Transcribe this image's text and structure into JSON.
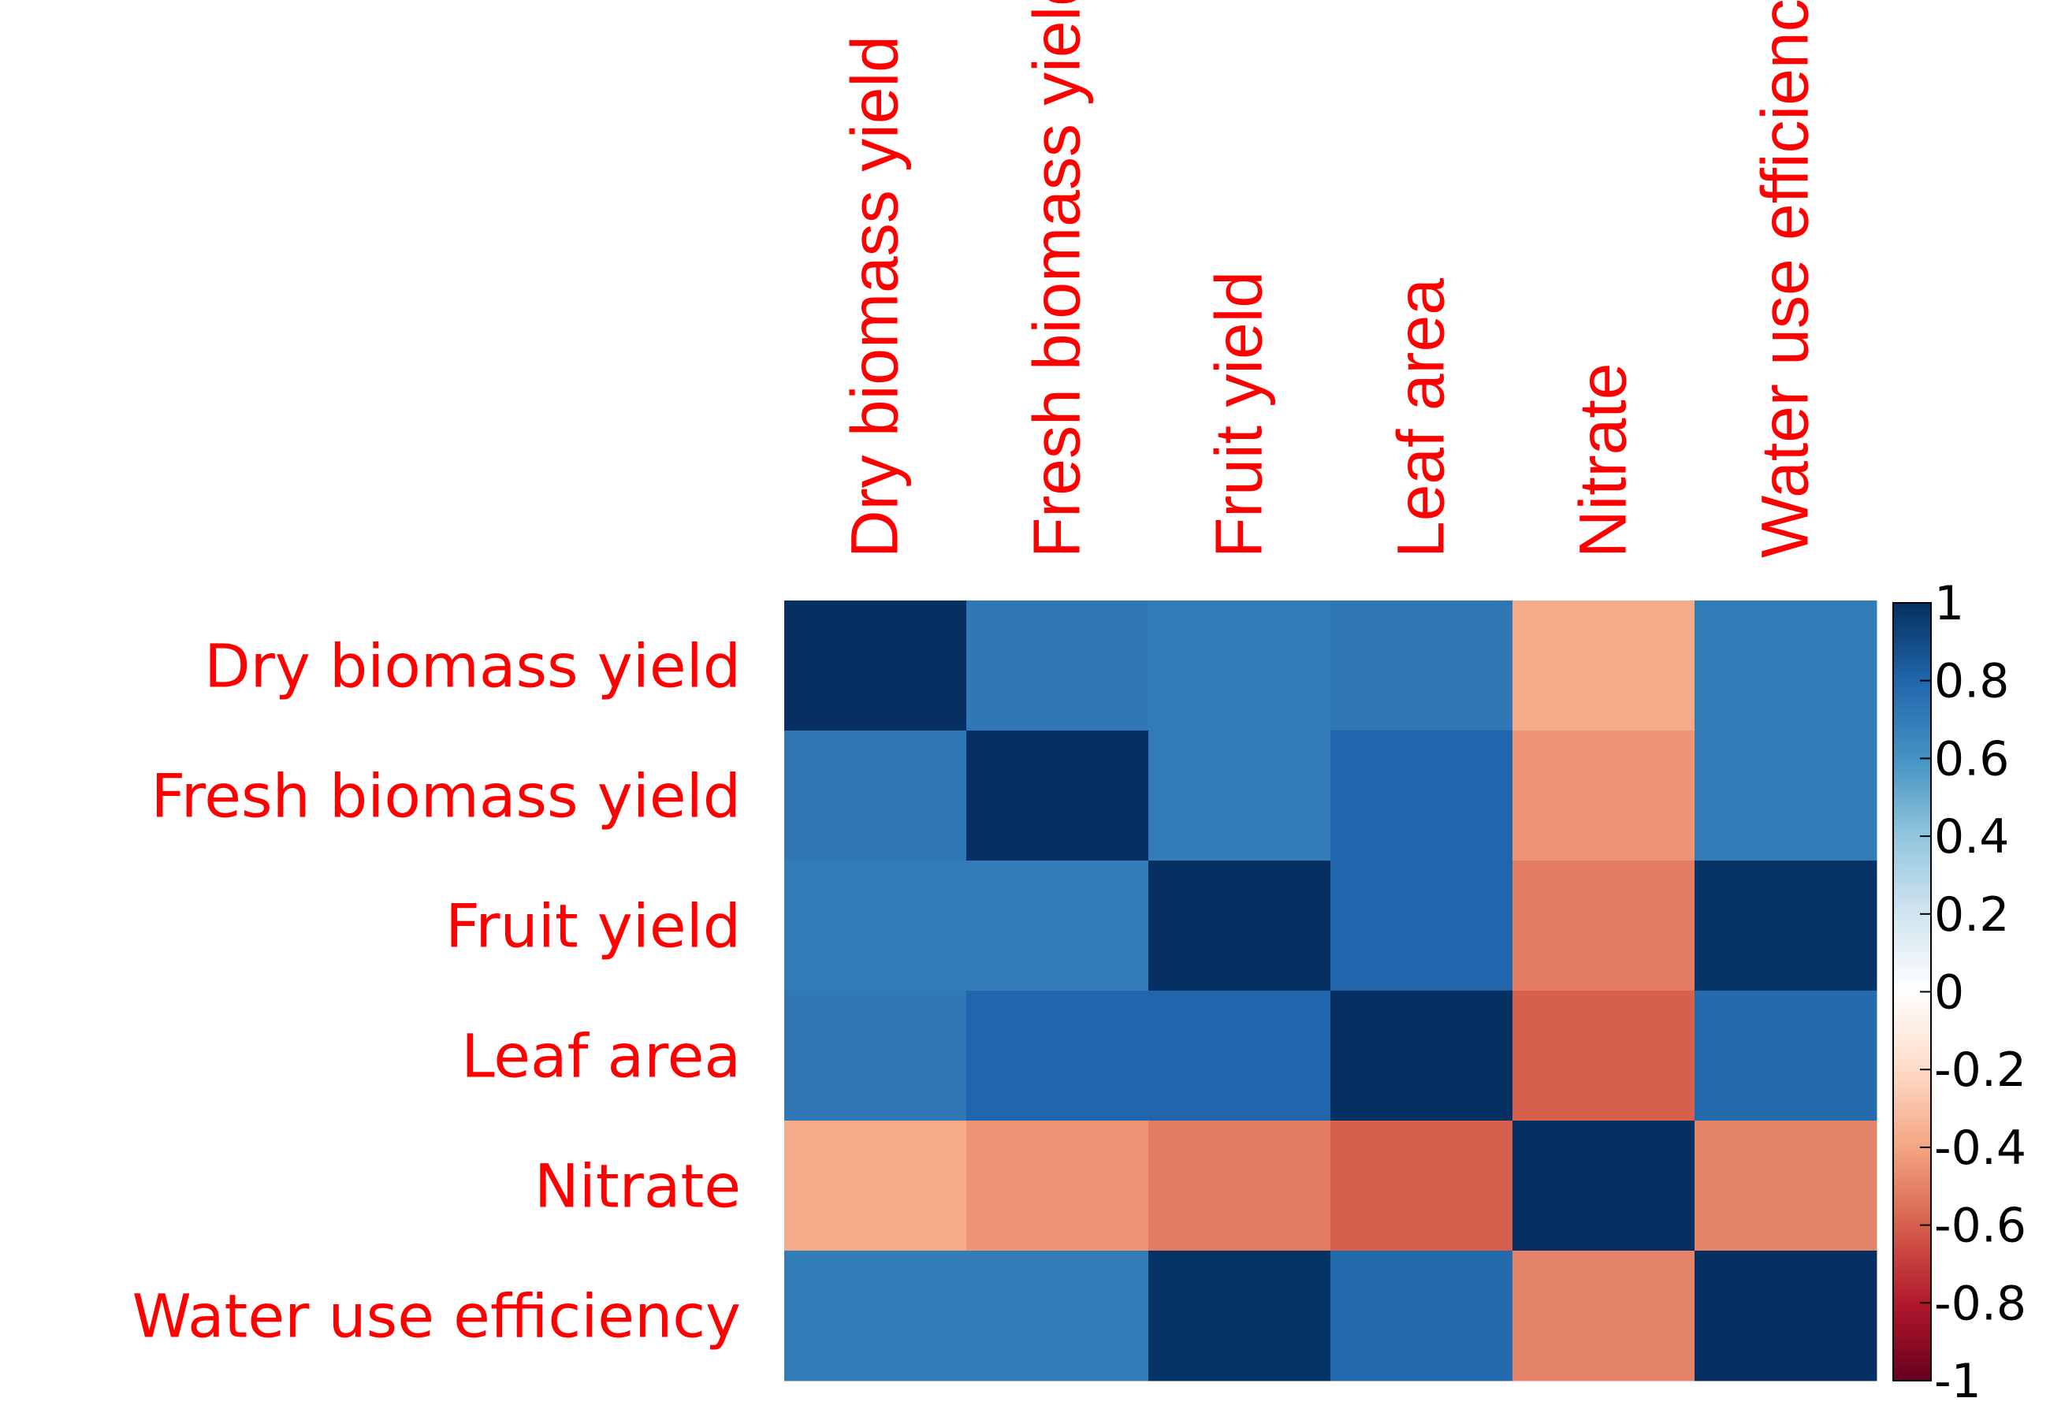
{
  "chart_data": {
    "type": "heatmap",
    "title": "",
    "rows": [
      "Dry biomass yield",
      "Fresh biomass yield",
      "Fruit yield",
      "Leaf area",
      "Nitrate",
      "Water use efficiency"
    ],
    "columns": [
      "Dry biomass yield",
      "Fresh biomass yield",
      "Fruit yield",
      "Leaf area",
      "Nitrate",
      "Water use efficiency"
    ],
    "values": [
      [
        1.0,
        0.72,
        0.7,
        0.72,
        -0.38,
        0.7
      ],
      [
        0.72,
        1.0,
        0.7,
        0.8,
        -0.45,
        0.7
      ],
      [
        0.7,
        0.7,
        1.0,
        0.8,
        -0.52,
        0.99
      ],
      [
        0.72,
        0.8,
        0.8,
        1.0,
        -0.6,
        0.78
      ],
      [
        -0.38,
        -0.45,
        -0.52,
        -0.6,
        1.0,
        -0.5
      ],
      [
        0.7,
        0.7,
        0.99,
        0.78,
        -0.5,
        1.0
      ]
    ],
    "colorbar": {
      "range": [
        -1,
        1
      ],
      "ticks": [
        1,
        0.8,
        0.6,
        0.4,
        0.2,
        0,
        -0.2,
        -0.4,
        -0.6,
        -0.8,
        -1
      ],
      "tick_labels": [
        "1",
        "0.8",
        "0.6",
        "0.4",
        "0.2",
        "0",
        "-0.2",
        "-0.4",
        "-0.6",
        "-0.8",
        "-1"
      ],
      "colors": [
        "#67001f",
        "#b2182b",
        "#d6604d",
        "#f4a582",
        "#fddbc7",
        "#ffffff",
        "#d1e5f0",
        "#92c5de",
        "#4393c3",
        "#2166ac",
        "#053061"
      ]
    },
    "label_color": "#ff0000"
  }
}
